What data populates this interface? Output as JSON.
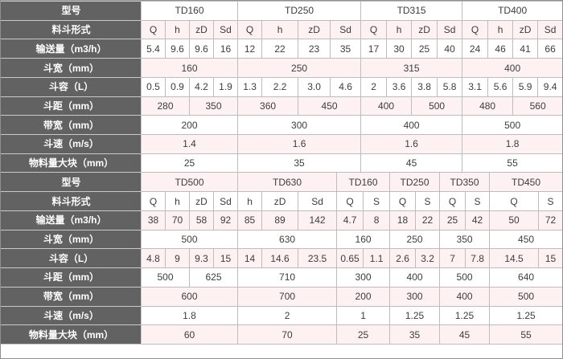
{
  "colors": {
    "label_column_bg": "#626262",
    "label_text": "#ffffff",
    "zebra_pink": "#fdf1f1",
    "row_white": "#ffffff",
    "grid_border": "#bdbdbd",
    "data_text": "#3d3d3d"
  },
  "sections": [
    {
      "rows": [
        {
          "label": "型号",
          "cells": [
            {
              "t": "TD160",
              "s": 4
            },
            {
              "t": "TD250",
              "s": 4
            },
            {
              "t": "TD315",
              "s": 4
            },
            {
              "t": "TD400",
              "s": 4
            }
          ]
        },
        {
          "label": "料斗形式",
          "cells": [
            "Q",
            "h",
            "zD",
            "Sd",
            "Q",
            "h",
            "zD",
            "Sd",
            "Q",
            "h",
            "zD",
            "Sd",
            "Q",
            "h",
            "zD",
            "Sd"
          ]
        },
        {
          "label": "输送量（m3/h）",
          "cells": [
            "5.4",
            "9.6",
            "9.6",
            "16",
            "12",
            "22",
            "23",
            "35",
            "17",
            "30",
            "25",
            "40",
            "24",
            "46",
            "41",
            "66"
          ]
        },
        {
          "label": "斗宽（mm）",
          "cells": [
            {
              "t": "160",
              "s": 4
            },
            {
              "t": "250",
              "s": 4
            },
            {
              "t": "315",
              "s": 4
            },
            {
              "t": "400",
              "s": 4
            }
          ]
        },
        {
          "label": "斗容（L）",
          "cells": [
            "0.5",
            "0.9",
            "4.2",
            "1.9",
            "1.3",
            "2.2",
            "3.0",
            "4.6",
            "2",
            "3.6",
            "3.8",
            "5.8",
            "3.1",
            "5.6",
            "5.9",
            "9.4"
          ]
        },
        {
          "label": "斗距（mm）",
          "cells": [
            {
              "t": "280",
              "s": 2
            },
            {
              "t": "350",
              "s": 2
            },
            {
              "t": "360",
              "s": 2
            },
            {
              "t": "450",
              "s": 2
            },
            {
              "t": "400",
              "s": 2
            },
            {
              "t": "500",
              "s": 2
            },
            {
              "t": "480",
              "s": 2
            },
            {
              "t": "560",
              "s": 2
            }
          ]
        },
        {
          "label": "带宽（mm）",
          "cells": [
            {
              "t": "200",
              "s": 4
            },
            {
              "t": "300",
              "s": 4
            },
            {
              "t": "400",
              "s": 4
            },
            {
              "t": "500",
              "s": 4
            }
          ]
        },
        {
          "label": "斗速（m/s）",
          "cells": [
            {
              "t": "1.4",
              "s": 4
            },
            {
              "t": "1.6",
              "s": 4
            },
            {
              "t": "1.6",
              "s": 4
            },
            {
              "t": "1.8",
              "s": 4
            }
          ]
        },
        {
          "label": "物料量大块（mm）",
          "cells": [
            {
              "t": "25",
              "s": 4
            },
            {
              "t": "35",
              "s": 4
            },
            {
              "t": "45",
              "s": 4
            },
            {
              "t": "55",
              "s": 4
            }
          ]
        }
      ]
    },
    {
      "rows": [
        {
          "label": "型号",
          "cells": [
            {
              "t": "TD500",
              "s": 4
            },
            {
              "t": "TD630",
              "s": 3
            },
            {
              "t": "TD160",
              "s": 2
            },
            {
              "t": "TD250",
              "s": 2
            },
            {
              "t": "TD350",
              "s": 2
            },
            {
              "t": "TD450",
              "s": 2
            }
          ]
        },
        {
          "label": "料斗形式",
          "cells": [
            "Q",
            "h",
            "zD",
            "Sd",
            "h",
            "zD",
            "Sd",
            "Q",
            "S",
            "Q",
            "S",
            "Q",
            "S",
            "Q",
            "S"
          ]
        },
        {
          "label": "输送量（m3/h）",
          "cells": [
            "38",
            "70",
            "58",
            "92",
            "85",
            "89",
            "142",
            "4.7",
            "8",
            "18",
            "22",
            "25",
            "42",
            "50",
            "72"
          ]
        },
        {
          "label": "斗宽（mm）",
          "cells": [
            {
              "t": "500",
              "s": 4
            },
            {
              "t": "630",
              "s": 3
            },
            {
              "t": "160",
              "s": 2
            },
            {
              "t": "250",
              "s": 2
            },
            {
              "t": "350",
              "s": 2
            },
            {
              "t": "450",
              "s": 2
            }
          ]
        },
        {
          "label": "斗容（L）",
          "cells": [
            "4.8",
            "9",
            "9.3",
            "15",
            "14",
            "14.6",
            "23.5",
            "0.65",
            "1.1",
            "2.6",
            "3.2",
            "7",
            "7.8",
            "14.5",
            "15"
          ]
        },
        {
          "label": "斗距（mm）",
          "cells": [
            {
              "t": "500",
              "s": 2
            },
            {
              "t": "625",
              "s": 2
            },
            {
              "t": "710",
              "s": 3
            },
            {
              "t": "300",
              "s": 2
            },
            {
              "t": "400",
              "s": 2
            },
            {
              "t": "500",
              "s": 2
            },
            {
              "t": "640",
              "s": 2
            }
          ]
        },
        {
          "label": "带宽（mm）",
          "cells": [
            {
              "t": "600",
              "s": 4
            },
            {
              "t": "700",
              "s": 3
            },
            {
              "t": "200",
              "s": 2
            },
            {
              "t": "300",
              "s": 2
            },
            {
              "t": "400",
              "s": 2
            },
            {
              "t": "500",
              "s": 2
            }
          ]
        },
        {
          "label": "斗速（m/s）",
          "cells": [
            {
              "t": "1.8",
              "s": 4
            },
            {
              "t": "2",
              "s": 3
            },
            {
              "t": "1",
              "s": 2
            },
            {
              "t": "1.25",
              "s": 2
            },
            {
              "t": "1.25",
              "s": 2
            },
            {
              "t": "1.25",
              "s": 2
            }
          ]
        },
        {
          "label": "物料量大块（mm）",
          "cells": [
            {
              "t": "60",
              "s": 4
            },
            {
              "t": "70",
              "s": 3
            },
            {
              "t": "25",
              "s": 2
            },
            {
              "t": "35",
              "s": 2
            },
            {
              "t": "45",
              "s": 2
            },
            {
              "t": "55",
              "s": 2
            }
          ]
        }
      ]
    }
  ]
}
